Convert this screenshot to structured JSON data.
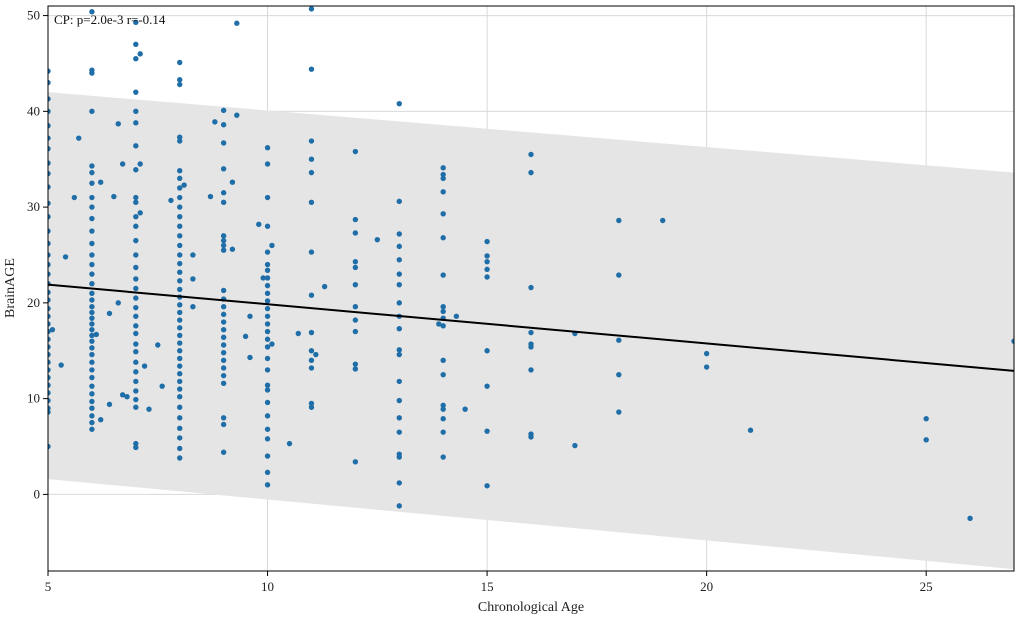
{
  "chart_data": {
    "type": "scatter",
    "xlabel": "Chronological Age",
    "ylabel": "BrainAGE",
    "annotation": "CP: p=2.0e-3 r=-0.14",
    "xlim": [
      5,
      27
    ],
    "ylim": [
      -8,
      51
    ],
    "xticks": [
      5,
      10,
      15,
      20,
      25
    ],
    "yticks": [
      0,
      10,
      20,
      30,
      40,
      50
    ],
    "grid": true,
    "colors": {
      "points": "#1f6ea8",
      "fit_line": "#000000",
      "band": "#e5e5e5",
      "grid": "#d9d9d9"
    },
    "fit_line": {
      "x": [
        5,
        27
      ],
      "y": [
        21.9,
        12.9
      ]
    },
    "prediction_band": {
      "x": [
        5,
        27
      ],
      "upper": [
        42.0,
        33.6
      ],
      "lower": [
        1.6,
        -7.8
      ]
    },
    "points": [
      [
        5.0,
        44.2
      ],
      [
        5.0,
        43.0
      ],
      [
        5.0,
        41.3
      ],
      [
        5.0,
        40.0
      ],
      [
        5.0,
        38.5
      ],
      [
        5.0,
        37.2
      ],
      [
        5.0,
        36.1
      ],
      [
        5.0,
        34.6
      ],
      [
        5.0,
        33.5
      ],
      [
        5.0,
        32.1
      ],
      [
        5.0,
        30.4
      ],
      [
        5.0,
        29.0
      ],
      [
        5.0,
        27.5
      ],
      [
        5.0,
        26.2
      ],
      [
        5.0,
        25.0
      ],
      [
        5.0,
        24.0
      ],
      [
        5.0,
        23.0
      ],
      [
        5.0,
        22.0
      ],
      [
        5.0,
        21.1
      ],
      [
        5.0,
        20.3
      ],
      [
        5.0,
        19.4
      ],
      [
        5.0,
        18.6
      ],
      [
        5.0,
        17.8
      ],
      [
        5.0,
        17.0
      ],
      [
        5.0,
        16.2
      ],
      [
        5.0,
        15.4
      ],
      [
        5.0,
        14.6
      ],
      [
        5.0,
        13.8
      ],
      [
        5.0,
        13.0
      ],
      [
        5.0,
        12.2
      ],
      [
        5.0,
        11.4
      ],
      [
        5.0,
        10.6
      ],
      [
        5.0,
        9.8
      ],
      [
        5.0,
        9.0
      ],
      [
        5.0,
        8.6
      ],
      [
        5.0,
        5.0
      ],
      [
        5.1,
        17.2
      ],
      [
        5.3,
        13.5
      ],
      [
        5.4,
        24.8
      ],
      [
        5.6,
        31.0
      ],
      [
        5.7,
        37.2
      ],
      [
        6.0,
        50.4
      ],
      [
        6.0,
        44.3
      ],
      [
        6.0,
        44.0
      ],
      [
        6.0,
        40.0
      ],
      [
        6.0,
        34.3
      ],
      [
        6.0,
        33.6
      ],
      [
        6.0,
        32.5
      ],
      [
        6.0,
        31.0
      ],
      [
        6.0,
        30.0
      ],
      [
        6.0,
        28.8
      ],
      [
        6.0,
        27.5
      ],
      [
        6.0,
        26.2
      ],
      [
        6.0,
        25.0
      ],
      [
        6.0,
        24.0
      ],
      [
        6.0,
        23.0
      ],
      [
        6.0,
        22.0
      ],
      [
        6.0,
        21.0
      ],
      [
        6.0,
        20.3
      ],
      [
        6.0,
        19.6
      ],
      [
        6.0,
        19.0
      ],
      [
        6.0,
        18.4
      ],
      [
        6.0,
        17.8
      ],
      [
        6.0,
        17.2
      ],
      [
        6.0,
        16.6
      ],
      [
        6.0,
        16.0
      ],
      [
        6.0,
        15.3
      ],
      [
        6.0,
        14.6
      ],
      [
        6.0,
        13.8
      ],
      [
        6.0,
        13.0
      ],
      [
        6.0,
        12.2
      ],
      [
        6.0,
        11.3
      ],
      [
        6.0,
        10.5
      ],
      [
        6.0,
        9.7
      ],
      [
        6.0,
        9.0
      ],
      [
        6.0,
        8.2
      ],
      [
        6.0,
        7.5
      ],
      [
        6.0,
        6.8
      ],
      [
        6.1,
        16.7
      ],
      [
        6.2,
        32.6
      ],
      [
        6.2,
        7.8
      ],
      [
        6.4,
        9.4
      ],
      [
        6.4,
        18.9
      ],
      [
        6.5,
        31.1
      ],
      [
        6.6,
        38.7
      ],
      [
        6.6,
        20.0
      ],
      [
        6.7,
        34.5
      ],
      [
        6.7,
        10.4
      ],
      [
        6.8,
        10.2
      ],
      [
        7.0,
        49.3
      ],
      [
        7.0,
        47.0
      ],
      [
        7.0,
        45.5
      ],
      [
        7.0,
        42.0
      ],
      [
        7.0,
        40.0
      ],
      [
        7.0,
        38.8
      ],
      [
        7.0,
        36.4
      ],
      [
        7.0,
        33.9
      ],
      [
        7.0,
        31.0
      ],
      [
        7.0,
        30.5
      ],
      [
        7.0,
        29.0
      ],
      [
        7.0,
        28.0
      ],
      [
        7.0,
        26.5
      ],
      [
        7.0,
        25.0
      ],
      [
        7.0,
        23.7
      ],
      [
        7.0,
        22.5
      ],
      [
        7.0,
        21.5
      ],
      [
        7.0,
        20.5
      ],
      [
        7.0,
        19.5
      ],
      [
        7.0,
        18.6
      ],
      [
        7.0,
        17.6
      ],
      [
        7.0,
        16.8
      ],
      [
        7.0,
        15.7
      ],
      [
        7.0,
        14.9
      ],
      [
        7.0,
        13.8
      ],
      [
        7.0,
        12.8
      ],
      [
        7.0,
        11.8
      ],
      [
        7.0,
        10.8
      ],
      [
        7.0,
        9.9
      ],
      [
        7.0,
        9.1
      ],
      [
        7.0,
        5.3
      ],
      [
        7.0,
        4.9
      ],
      [
        7.1,
        46.0
      ],
      [
        7.1,
        29.4
      ],
      [
        7.1,
        34.5
      ],
      [
        7.2,
        13.4
      ],
      [
        7.3,
        8.9
      ],
      [
        7.5,
        15.6
      ],
      [
        7.6,
        11.3
      ],
      [
        7.8,
        30.7
      ],
      [
        8.0,
        45.1
      ],
      [
        8.0,
        43.3
      ],
      [
        8.0,
        42.8
      ],
      [
        8.0,
        37.3
      ],
      [
        8.0,
        36.9
      ],
      [
        8.0,
        33.8
      ],
      [
        8.0,
        33.0
      ],
      [
        8.0,
        32.0
      ],
      [
        8.0,
        31.0
      ],
      [
        8.0,
        30.0
      ],
      [
        8.0,
        29.0
      ],
      [
        8.0,
        28.0
      ],
      [
        8.0,
        27.0
      ],
      [
        8.0,
        26.0
      ],
      [
        8.0,
        25.0
      ],
      [
        8.0,
        24.1
      ],
      [
        8.0,
        23.2
      ],
      [
        8.0,
        22.3
      ],
      [
        8.0,
        21.4
      ],
      [
        8.0,
        20.6
      ],
      [
        8.0,
        19.8
      ],
      [
        8.0,
        19.0
      ],
      [
        8.0,
        18.2
      ],
      [
        8.0,
        17.4
      ],
      [
        8.0,
        16.6
      ],
      [
        8.0,
        15.8
      ],
      [
        8.0,
        15.0
      ],
      [
        8.0,
        14.2
      ],
      [
        8.0,
        13.4
      ],
      [
        8.0,
        12.6
      ],
      [
        8.0,
        11.8
      ],
      [
        8.0,
        11.0
      ],
      [
        8.0,
        10.2
      ],
      [
        8.0,
        9.1
      ],
      [
        8.0,
        8.0
      ],
      [
        8.0,
        6.9
      ],
      [
        8.0,
        5.9
      ],
      [
        8.0,
        4.8
      ],
      [
        8.0,
        3.8
      ],
      [
        8.1,
        32.3
      ],
      [
        8.3,
        22.5
      ],
      [
        8.3,
        19.6
      ],
      [
        8.3,
        25.0
      ],
      [
        8.7,
        31.1
      ],
      [
        8.8,
        38.9
      ],
      [
        9.0,
        40.1
      ],
      [
        9.0,
        38.6
      ],
      [
        9.0,
        36.7
      ],
      [
        9.0,
        34.0
      ],
      [
        9.0,
        31.5
      ],
      [
        9.0,
        30.5
      ],
      [
        9.0,
        27.0
      ],
      [
        9.0,
        26.5
      ],
      [
        9.0,
        26.0
      ],
      [
        9.0,
        25.5
      ],
      [
        9.0,
        21.3
      ],
      [
        9.0,
        20.4
      ],
      [
        9.0,
        19.6
      ],
      [
        9.0,
        18.8
      ],
      [
        9.0,
        18.0
      ],
      [
        9.0,
        17.2
      ],
      [
        9.0,
        16.4
      ],
      [
        9.0,
        15.6
      ],
      [
        9.0,
        14.8
      ],
      [
        9.0,
        14.0
      ],
      [
        9.0,
        13.2
      ],
      [
        9.0,
        12.4
      ],
      [
        9.0,
        11.6
      ],
      [
        9.0,
        8.0
      ],
      [
        9.0,
        7.3
      ],
      [
        9.0,
        4.4
      ],
      [
        9.2,
        32.6
      ],
      [
        9.2,
        25.6
      ],
      [
        9.3,
        49.2
      ],
      [
        9.3,
        39.6
      ],
      [
        9.5,
        16.5
      ],
      [
        9.6,
        18.6
      ],
      [
        9.6,
        14.3
      ],
      [
        9.8,
        28.2
      ],
      [
        9.9,
        22.6
      ],
      [
        10.0,
        36.2
      ],
      [
        10.0,
        34.5
      ],
      [
        10.0,
        31.0
      ],
      [
        10.0,
        28.0
      ],
      [
        10.0,
        25.3
      ],
      [
        10.0,
        24.0
      ],
      [
        10.0,
        23.4
      ],
      [
        10.0,
        22.6
      ],
      [
        10.0,
        21.8
      ],
      [
        10.0,
        21.0
      ],
      [
        10.0,
        20.2
      ],
      [
        10.0,
        19.4
      ],
      [
        10.0,
        18.6
      ],
      [
        10.0,
        17.8
      ],
      [
        10.0,
        17.0
      ],
      [
        10.0,
        16.2
      ],
      [
        10.0,
        15.4
      ],
      [
        10.0,
        14.2
      ],
      [
        10.0,
        13.0
      ],
      [
        10.0,
        11.4
      ],
      [
        10.0,
        10.9
      ],
      [
        10.0,
        9.6
      ],
      [
        10.0,
        8.2
      ],
      [
        10.0,
        6.8
      ],
      [
        10.0,
        5.8
      ],
      [
        10.0,
        4.0
      ],
      [
        10.0,
        2.3
      ],
      [
        10.0,
        1.0
      ],
      [
        10.1,
        26.0
      ],
      [
        10.1,
        15.7
      ],
      [
        10.5,
        5.3
      ],
      [
        10.7,
        16.8
      ],
      [
        11.0,
        50.7
      ],
      [
        11.0,
        44.4
      ],
      [
        11.0,
        36.9
      ],
      [
        11.0,
        35.0
      ],
      [
        11.0,
        33.6
      ],
      [
        11.0,
        30.5
      ],
      [
        11.0,
        25.3
      ],
      [
        11.0,
        20.8
      ],
      [
        11.0,
        16.9
      ],
      [
        11.0,
        15.0
      ],
      [
        11.0,
        14.0
      ],
      [
        11.0,
        13.2
      ],
      [
        11.0,
        9.5
      ],
      [
        11.0,
        9.1
      ],
      [
        11.1,
        14.6
      ],
      [
        11.3,
        21.7
      ],
      [
        12.0,
        35.8
      ],
      [
        12.0,
        28.7
      ],
      [
        12.0,
        27.3
      ],
      [
        12.0,
        24.3
      ],
      [
        12.0,
        23.7
      ],
      [
        12.0,
        21.9
      ],
      [
        12.0,
        19.6
      ],
      [
        12.0,
        18.2
      ],
      [
        12.0,
        17.0
      ],
      [
        12.0,
        13.6
      ],
      [
        12.0,
        13.1
      ],
      [
        12.0,
        3.4
      ],
      [
        12.5,
        26.6
      ],
      [
        13.0,
        40.8
      ],
      [
        13.0,
        30.6
      ],
      [
        13.0,
        27.2
      ],
      [
        13.0,
        25.9
      ],
      [
        13.0,
        24.5
      ],
      [
        13.0,
        23.0
      ],
      [
        13.0,
        21.9
      ],
      [
        13.0,
        20.0
      ],
      [
        13.0,
        18.6
      ],
      [
        13.0,
        17.3
      ],
      [
        13.0,
        15.1
      ],
      [
        13.0,
        14.6
      ],
      [
        13.0,
        11.8
      ],
      [
        13.0,
        9.8
      ],
      [
        13.0,
        8.0
      ],
      [
        13.0,
        6.5
      ],
      [
        13.0,
        4.2
      ],
      [
        13.0,
        3.9
      ],
      [
        13.0,
        1.2
      ],
      [
        13.0,
        -1.2
      ],
      [
        13.9,
        17.8
      ],
      [
        14.0,
        34.1
      ],
      [
        14.0,
        33.4
      ],
      [
        14.0,
        33.0
      ],
      [
        14.0,
        31.6
      ],
      [
        14.0,
        29.3
      ],
      [
        14.0,
        26.8
      ],
      [
        14.0,
        22.9
      ],
      [
        14.0,
        19.6
      ],
      [
        14.0,
        19.1
      ],
      [
        14.0,
        18.4
      ],
      [
        14.0,
        17.6
      ],
      [
        14.0,
        14.0
      ],
      [
        14.0,
        12.5
      ],
      [
        14.0,
        9.3
      ],
      [
        14.0,
        8.9
      ],
      [
        14.0,
        7.9
      ],
      [
        14.0,
        6.5
      ],
      [
        14.0,
        3.9
      ],
      [
        14.3,
        18.6
      ],
      [
        14.5,
        8.9
      ],
      [
        15.0,
        26.4
      ],
      [
        15.0,
        24.9
      ],
      [
        15.0,
        24.3
      ],
      [
        15.0,
        23.5
      ],
      [
        15.0,
        22.7
      ],
      [
        15.0,
        15.0
      ],
      [
        15.0,
        11.3
      ],
      [
        15.0,
        6.6
      ],
      [
        15.0,
        0.9
      ],
      [
        16.0,
        35.5
      ],
      [
        16.0,
        33.6
      ],
      [
        16.0,
        21.6
      ],
      [
        16.0,
        16.9
      ],
      [
        16.0,
        15.7
      ],
      [
        16.0,
        15.4
      ],
      [
        16.0,
        13.0
      ],
      [
        16.0,
        6.3
      ],
      [
        16.0,
        6.0
      ],
      [
        17.0,
        16.8
      ],
      [
        17.0,
        5.1
      ],
      [
        18.0,
        28.6
      ],
      [
        18.0,
        22.9
      ],
      [
        18.0,
        16.1
      ],
      [
        18.0,
        12.5
      ],
      [
        18.0,
        8.6
      ],
      [
        19.0,
        28.6
      ],
      [
        20.0,
        14.7
      ],
      [
        20.0,
        13.3
      ],
      [
        21.0,
        6.7
      ],
      [
        25.0,
        7.9
      ],
      [
        25.0,
        5.7
      ],
      [
        26.0,
        -2.5
      ],
      [
        27.0,
        16.0
      ]
    ]
  }
}
